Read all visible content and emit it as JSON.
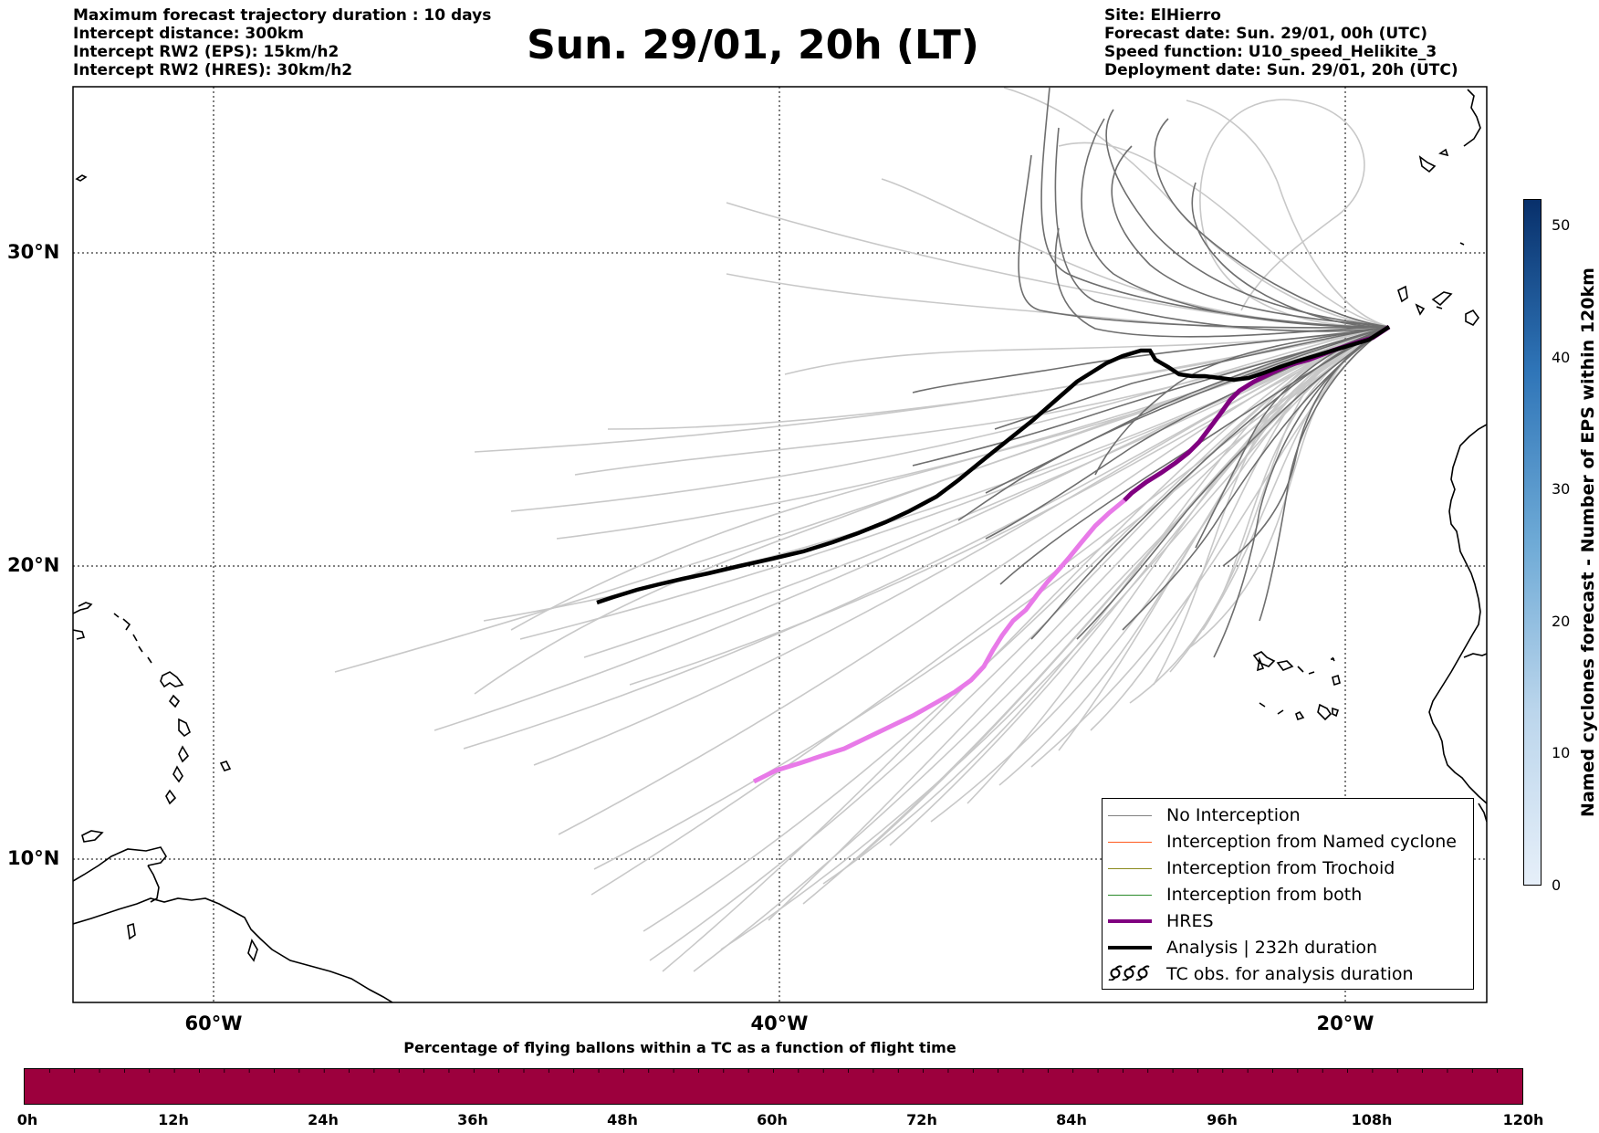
{
  "header_left": [
    "Maximum forecast trajectory duration : 10 days",
    "Intercept distance: 300km",
    "Intercept RW2 (EPS):  15km/h2",
    "Intercept RW2 (HRES): 30km/h2"
  ],
  "title": "Sun. 29/01, 20h (LT)",
  "header_right": [
    "Site: ElHierro",
    "Forecast date: Sun. 29/01, 00h (UTC)",
    "Speed function: U10_speed_Helikite_3",
    "Deployment date: Sun. 29/01, 20h (UTC)"
  ],
  "axes": {
    "lat_labels": [
      "30°N",
      "20°N",
      "10°N"
    ],
    "lon_labels": [
      "60°W",
      "40°W",
      "20°W"
    ]
  },
  "legend": [
    {
      "label": "No Interception",
      "color": "#808080"
    },
    {
      "label": "Interception from Named cyclone",
      "color": "#ff5a1e"
    },
    {
      "label": "Interception from Trochoid",
      "color": "#8a8a1e"
    },
    {
      "label": "Interception from both",
      "color": "#2a8a2a"
    },
    {
      "label": "HRES",
      "color": "#800080"
    },
    {
      "label": "Analysis | 232h duration",
      "color": "#000000"
    },
    {
      "label": "TC obs. for analysis duration",
      "color": "#000000",
      "icon": "cyclone-symbols-icon"
    }
  ],
  "colorbar": {
    "label": "Named cyclones forecast - Number of EPS within 120km",
    "ticks": [
      "0",
      "10",
      "20",
      "30",
      "40",
      "50"
    ]
  },
  "time_bar": {
    "caption": "Percentage of flying ballons within a TC as a function of flight time",
    "ticks": [
      "0h",
      "12h",
      "24h",
      "36h",
      "48h",
      "60h",
      "72h",
      "84h",
      "96h",
      "108h",
      "120h"
    ],
    "color": "#9c003d"
  }
}
